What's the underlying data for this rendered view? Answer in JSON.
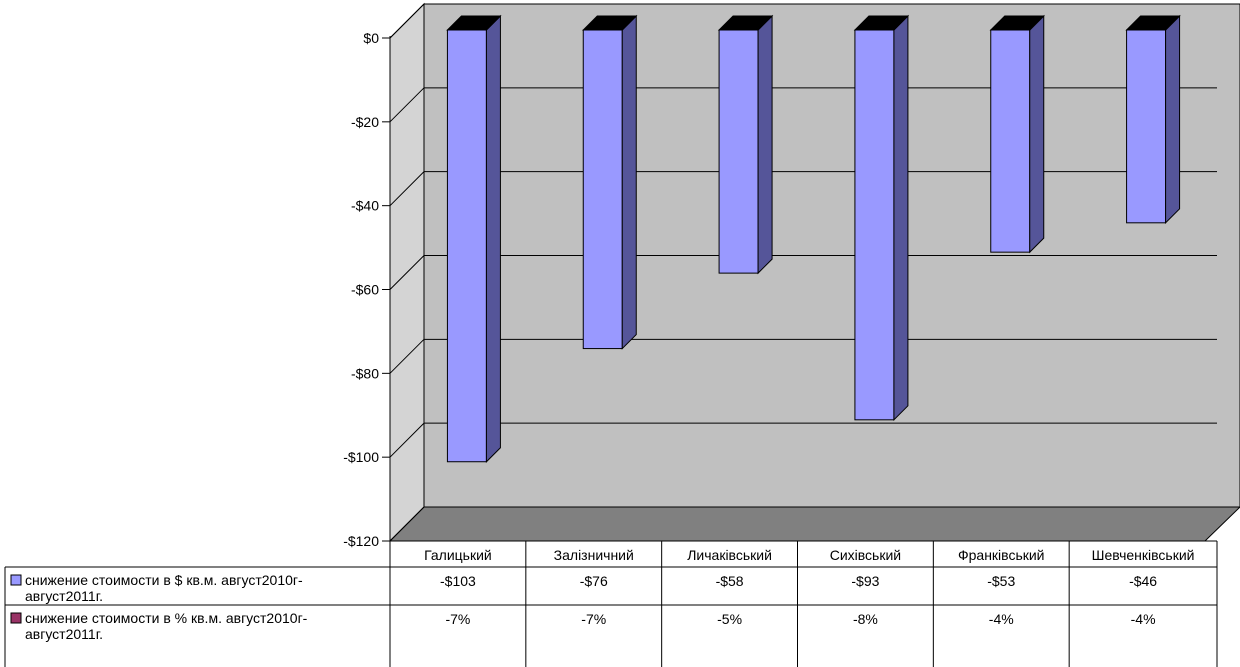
{
  "chart_data": {
    "type": "bar",
    "categories": [
      "Галицький",
      "Залізничний",
      "Личаківський",
      "Сихівський",
      "Франківський",
      "Шевченківський"
    ],
    "series": [
      {
        "name": "снижение стоимости в $ кв.м. август2010г-август2011г.",
        "values": [
          -103,
          -76,
          -58,
          -93,
          -53,
          -46
        ],
        "labels": [
          "-$103",
          "-$76",
          "-$58",
          "-$93",
          "-$53",
          "-$46"
        ],
        "color": "#9999ff",
        "plotted": true
      },
      {
        "name": "снижение стоимости в % кв.м. август2010г-август2011г.",
        "values": [
          -7,
          -7,
          -5,
          -8,
          -4,
          -4
        ],
        "labels": [
          "-7%",
          "-7%",
          "-5%",
          "-8%",
          "-4%",
          "-4%"
        ],
        "color": "#993366",
        "plotted": false
      }
    ],
    "y_ticks": [
      "$0",
      "-$20",
      "-$40",
      "-$60",
      "-$80",
      "-$100",
      "-$120"
    ],
    "ylim": [
      -120,
      0
    ],
    "grid": true,
    "data_table": true,
    "wall_color": "#c0c0c0",
    "floor_color": "#808080"
  }
}
